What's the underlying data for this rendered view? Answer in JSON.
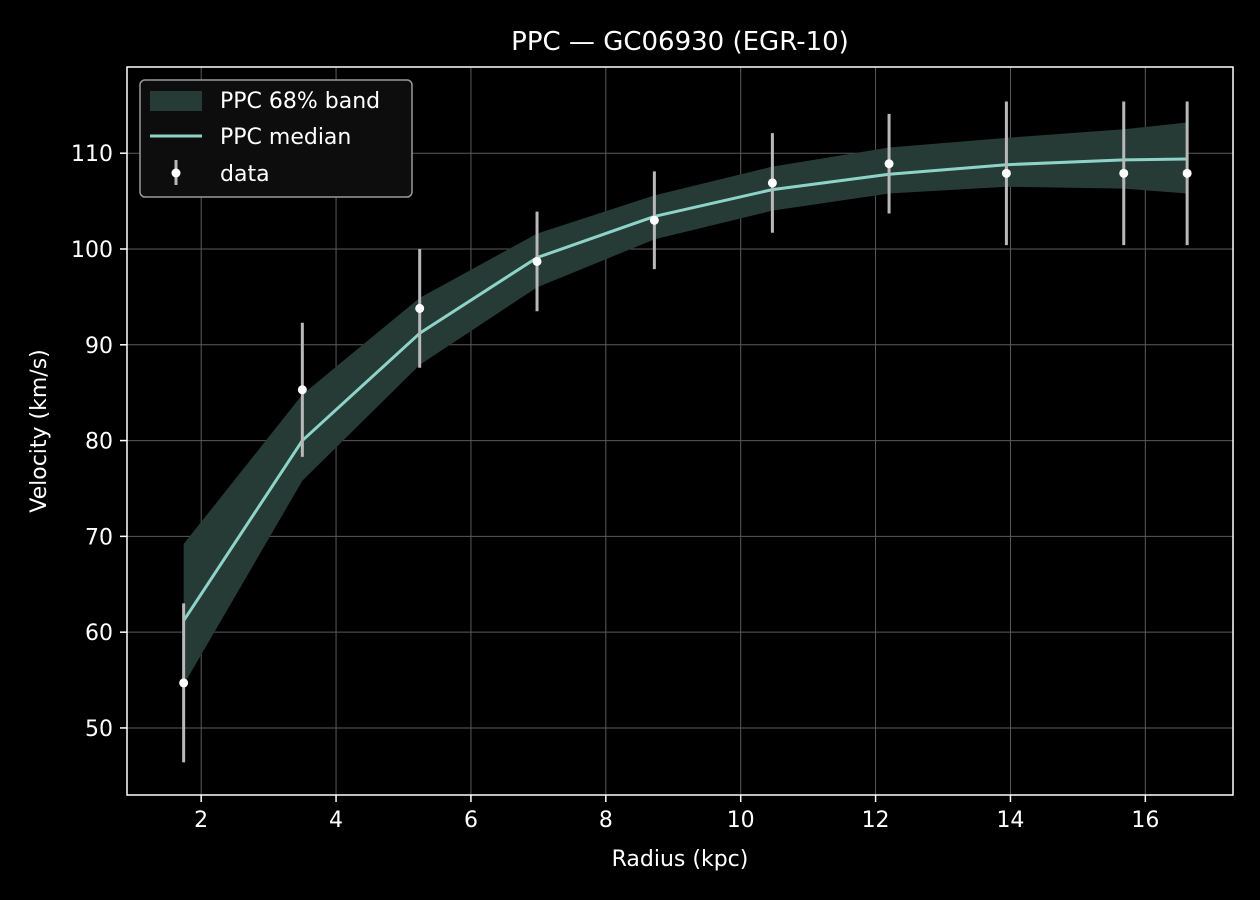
{
  "chart_data": {
    "type": "line",
    "title": "PPC — GC06930 (EGR-10)",
    "xlabel": "Radius (kpc)",
    "ylabel": "Velocity (km/s)",
    "xlim": [
      0.9,
      17.3
    ],
    "ylim": [
      43,
      119
    ],
    "xticks": [
      2,
      4,
      6,
      8,
      10,
      12,
      14,
      16
    ],
    "yticks": [
      50,
      60,
      70,
      80,
      90,
      100,
      110
    ],
    "grid": true,
    "legend_position": "upper left",
    "legend": {
      "band": "PPC 68% band",
      "median": "PPC median",
      "data": "data"
    },
    "colors": {
      "background": "#000000",
      "band": "#263a36",
      "median": "#8dd3c7",
      "data_point": "#ffffff",
      "error_bar": "#b8b8b8",
      "grid": "#5a5a5a"
    },
    "x": [
      1.74,
      3.5,
      5.24,
      6.98,
      8.72,
      10.47,
      12.2,
      13.94,
      15.68,
      16.62
    ],
    "median": [
      61.2,
      80.0,
      91.2,
      99.1,
      103.4,
      106.2,
      107.8,
      108.8,
      109.3,
      109.4
    ],
    "band_lower": [
      54.5,
      75.8,
      87.9,
      96.0,
      101.0,
      104.0,
      105.8,
      106.5,
      106.3,
      105.8
    ],
    "band_upper": [
      69.2,
      84.8,
      94.9,
      101.6,
      105.6,
      108.6,
      110.6,
      111.6,
      112.5,
      113.2
    ],
    "data_y": [
      54.7,
      85.3,
      93.8,
      98.7,
      103.0,
      106.9,
      108.9,
      107.9,
      107.9,
      107.9
    ],
    "data_err": [
      8.3,
      7.0,
      6.2,
      5.2,
      5.1,
      5.2,
      5.2,
      7.5,
      7.5,
      7.5
    ]
  }
}
